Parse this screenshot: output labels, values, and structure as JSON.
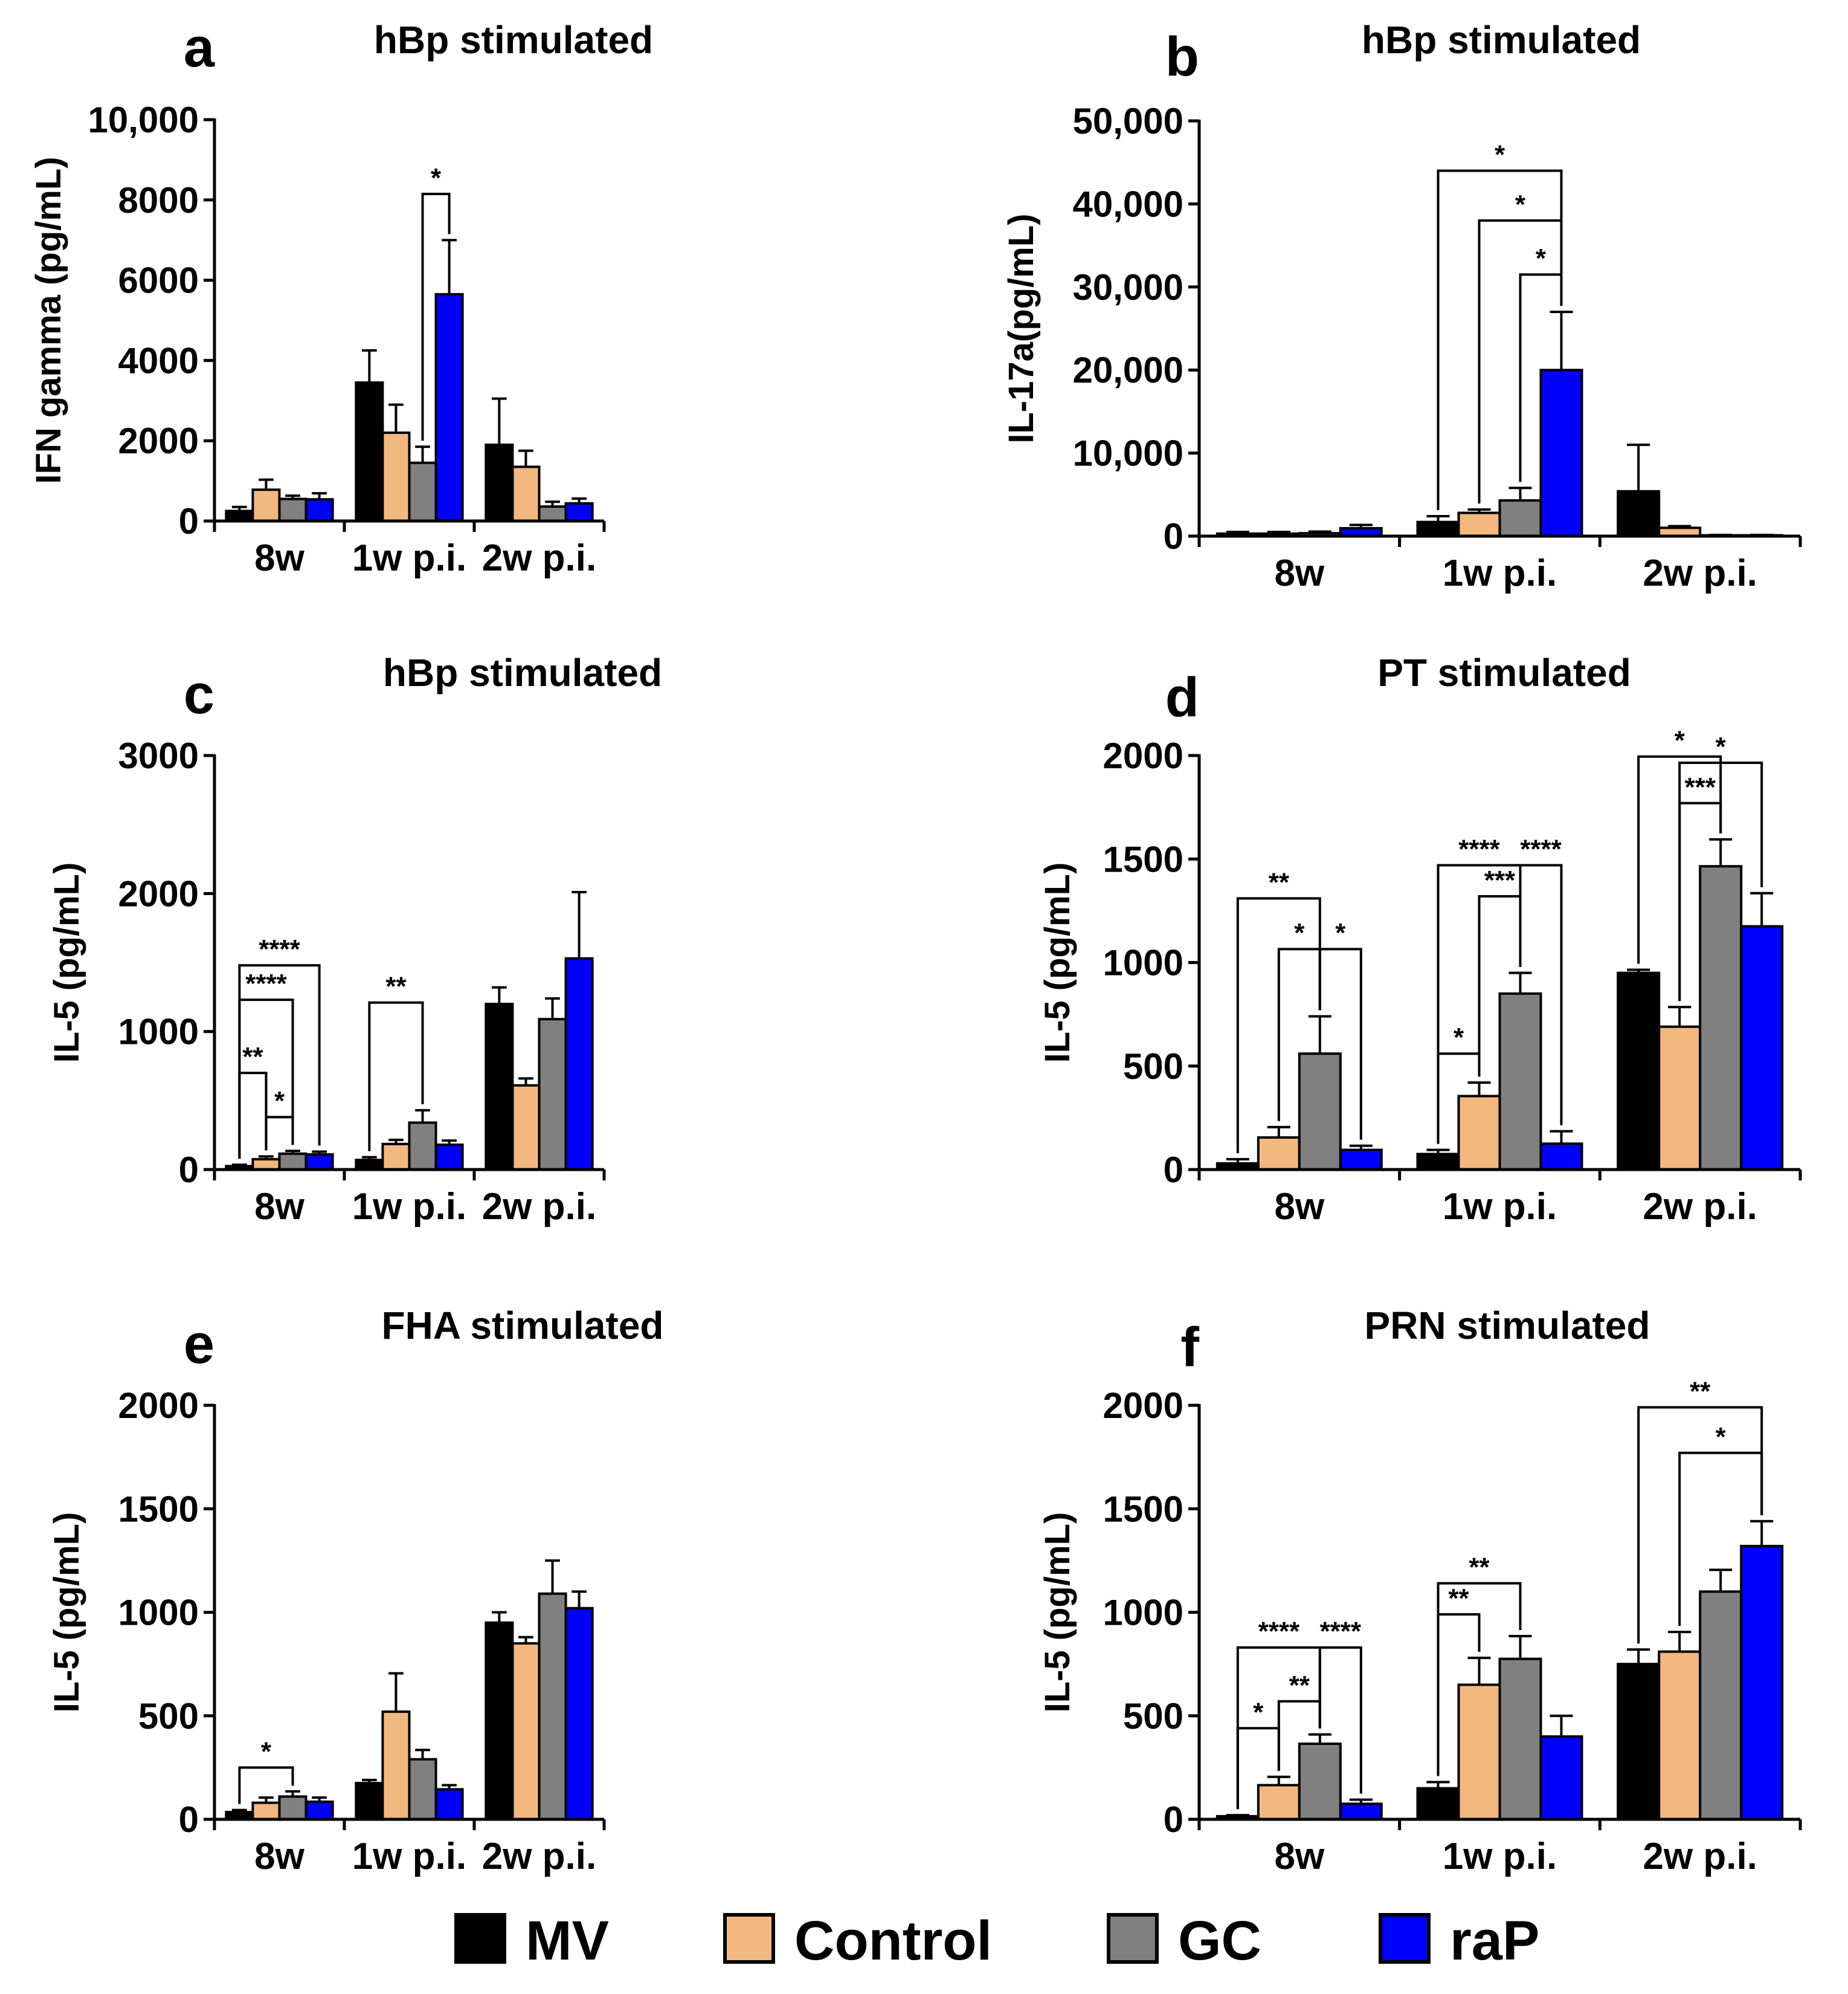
{
  "colors": {
    "MV": "#000000",
    "Control": "#F2B880",
    "GC": "#808080",
    "raP": "#0000FF"
  },
  "legend": [
    {
      "name": "MV",
      "color": "#000000"
    },
    {
      "name": "Control",
      "color": "#F2B880"
    },
    {
      "name": "GC",
      "color": "#808080"
    },
    {
      "name": "raP",
      "color": "#0000FF"
    }
  ],
  "chart_data": [
    {
      "panel": "a",
      "type": "bar",
      "title": "hBp stimulated",
      "xlabel": "",
      "ylabel": "IFN gamma (pg/mL)",
      "categories": [
        "8w",
        "1w p.i.",
        "2w p.i."
      ],
      "ylim": [
        0,
        10000
      ],
      "yticks": [
        0,
        2000,
        4000,
        6000,
        8000,
        10000
      ],
      "ytick_labels": [
        "0",
        "2000",
        "4000",
        "6000",
        "8000",
        "10,000"
      ],
      "series": [
        {
          "name": "MV",
          "values": [
            250,
            3450,
            1900
          ],
          "errors": [
            100,
            800,
            1150
          ]
        },
        {
          "name": "Control",
          "values": [
            780,
            2200,
            1350
          ],
          "errors": [
            250,
            700,
            400
          ]
        },
        {
          "name": "GC",
          "values": [
            550,
            1450,
            360
          ],
          "errors": [
            80,
            400,
            120
          ]
        },
        {
          "name": "raP",
          "values": [
            540,
            5650,
            440
          ],
          "errors": [
            150,
            1350,
            120
          ]
        }
      ],
      "significance": [
        {
          "label": "*",
          "group": 1,
          "from": 2,
          "to": 3,
          "level": 8150
        }
      ]
    },
    {
      "panel": "b",
      "type": "bar",
      "title": "hBp stimulated",
      "xlabel": "",
      "ylabel": "IL-17a(pg/mL)",
      "categories": [
        "8w",
        "1w p.i.",
        "2w p.i."
      ],
      "ylim": [
        0,
        50000
      ],
      "yticks": [
        0,
        10000,
        20000,
        30000,
        40000,
        50000
      ],
      "ytick_labels": [
        "0",
        "10,000",
        "20,000",
        "30,000",
        "40,000",
        "50,000"
      ],
      "series": [
        {
          "name": "MV",
          "values": [
            300,
            1700,
            5400
          ],
          "errors": [
            200,
            700,
            5600
          ]
        },
        {
          "name": "Control",
          "values": [
            300,
            2800,
            1000
          ],
          "errors": [
            200,
            400,
            200
          ]
        },
        {
          "name": "GC",
          "values": [
            350,
            4300,
            100
          ],
          "errors": [
            200,
            1500,
            50
          ]
        },
        {
          "name": "raP",
          "values": [
            950,
            20000,
            100
          ],
          "errors": [
            400,
            7000,
            50
          ]
        }
      ],
      "significance": [
        {
          "label": "*",
          "group": 1,
          "from": 0,
          "to": 3,
          "level": 44000
        },
        {
          "label": "*",
          "group": 1,
          "from": 1,
          "to": 3,
          "level": 38000
        },
        {
          "label": "*",
          "group": 1,
          "from": 2,
          "to": 3,
          "level": 31500
        }
      ]
    },
    {
      "panel": "c",
      "type": "bar",
      "title": "hBp stimulated",
      "xlabel": "",
      "ylabel": "IL-5 (pg/mL)",
      "categories": [
        "8w",
        "1w p.i.",
        "2w p.i."
      ],
      "ylim": [
        0,
        3000
      ],
      "yticks": [
        0,
        1000,
        2000,
        3000
      ],
      "ytick_labels": [
        "0",
        "1000",
        "2000",
        "3000"
      ],
      "series": [
        {
          "name": "MV",
          "values": [
            25,
            70,
            1200
          ],
          "errors": [
            10,
            20,
            120
          ]
        },
        {
          "name": "Control",
          "values": [
            75,
            185,
            610
          ],
          "errors": [
            20,
            30,
            50
          ]
        },
        {
          "name": "GC",
          "values": [
            115,
            340,
            1090
          ],
          "errors": [
            20,
            90,
            150
          ]
        },
        {
          "name": "raP",
          "values": [
            110,
            180,
            1530
          ],
          "errors": [
            20,
            30,
            480
          ]
        }
      ],
      "significance": [
        {
          "label": "****",
          "group": 0,
          "from": 0,
          "to": 3,
          "level": 1480
        },
        {
          "label": "****",
          "group": 0,
          "from": 0,
          "to": 2,
          "level": 1230
        },
        {
          "label": "**",
          "group": 0,
          "from": 0,
          "to": 1,
          "level": 700
        },
        {
          "label": "*",
          "group": 0,
          "from": 1,
          "to": 2,
          "level": 380
        },
        {
          "label": "**",
          "group": 1,
          "from": 0,
          "to": 2,
          "level": 1210
        }
      ]
    },
    {
      "panel": "d",
      "type": "bar",
      "title": "PT stimulated",
      "xlabel": "",
      "ylabel": "IL-5 (pg/mL)",
      "categories": [
        "8w",
        "1w p.i.",
        "2w p.i."
      ],
      "ylim": [
        0,
        2000
      ],
      "yticks": [
        0,
        500,
        1000,
        1500,
        2000
      ],
      "ytick_labels": [
        "0",
        "500",
        "1000",
        "1500",
        "2000"
      ],
      "series": [
        {
          "name": "MV",
          "values": [
            30,
            75,
            950
          ],
          "errors": [
            20,
            20,
            15
          ]
        },
        {
          "name": "Control",
          "values": [
            155,
            355,
            690
          ],
          "errors": [
            50,
            65,
            95
          ]
        },
        {
          "name": "GC",
          "values": [
            560,
            850,
            1465
          ],
          "errors": [
            180,
            100,
            130
          ]
        },
        {
          "name": "raP",
          "values": [
            95,
            125,
            1175
          ],
          "errors": [
            20,
            60,
            160
          ]
        }
      ],
      "significance": [
        {
          "label": "**",
          "group": 0,
          "from": 0,
          "to": 2,
          "level": 1310
        },
        {
          "label": "*",
          "group": 0,
          "from": 1,
          "to": 2,
          "level": 1065
        },
        {
          "label": "*",
          "group": 0,
          "from": 2,
          "to": 3,
          "level": 1065
        },
        {
          "label": "****",
          "group": 1,
          "from": 0,
          "to": 2,
          "level": 1470
        },
        {
          "label": "****",
          "group": 1,
          "from": 2,
          "to": 3,
          "level": 1470
        },
        {
          "label": "***",
          "group": 1,
          "from": 1,
          "to": 2,
          "level": 1320
        },
        {
          "label": "*",
          "group": 1,
          "from": 0,
          "to": 1,
          "level": 560
        },
        {
          "label": "*",
          "group": 2,
          "from": 0,
          "to": 2,
          "level": 1995
        },
        {
          "label": "*",
          "group": 2,
          "from": 1,
          "to": 3,
          "level": 1965
        },
        {
          "label": "***",
          "group": 2,
          "from": 1,
          "to": 2,
          "level": 1770
        }
      ]
    },
    {
      "panel": "e",
      "type": "bar",
      "title": "FHA stimulated",
      "xlabel": "",
      "ylabel": "IL-5 (pg/mL)",
      "categories": [
        "8w",
        "1w p.i.",
        "2w p.i."
      ],
      "ylim": [
        0,
        2000
      ],
      "yticks": [
        0,
        500,
        1000,
        1500,
        2000
      ],
      "ytick_labels": [
        "0",
        "500",
        "1000",
        "1500",
        "2000"
      ],
      "series": [
        {
          "name": "MV",
          "values": [
            35,
            175,
            950
          ],
          "errors": [
            10,
            15,
            50
          ]
        },
        {
          "name": "Control",
          "values": [
            80,
            520,
            850
          ],
          "errors": [
            25,
            185,
            30
          ]
        },
        {
          "name": "GC",
          "values": [
            110,
            290,
            1090
          ],
          "errors": [
            25,
            45,
            160
          ]
        },
        {
          "name": "raP",
          "values": [
            85,
            145,
            1020
          ],
          "errors": [
            20,
            20,
            80
          ]
        }
      ],
      "significance": [
        {
          "label": "*",
          "group": 0,
          "from": 0,
          "to": 2,
          "level": 250
        }
      ]
    },
    {
      "panel": "f",
      "type": "bar",
      "title": "PRN stimulated",
      "xlabel": "",
      "ylabel": "IL-5 (pg/mL)",
      "categories": [
        "8w",
        "1w p.i.",
        "2w p.i."
      ],
      "ylim": [
        0,
        2000
      ],
      "yticks": [
        0,
        500,
        1000,
        1500,
        2000
      ],
      "ytick_labels": [
        "0",
        "500",
        "1000",
        "1500",
        "2000"
      ],
      "series": [
        {
          "name": "MV",
          "values": [
            15,
            150,
            750
          ],
          "errors": [
            5,
            30,
            70
          ]
        },
        {
          "name": "Control",
          "values": [
            165,
            650,
            810
          ],
          "errors": [
            40,
            130,
            95
          ]
        },
        {
          "name": "GC",
          "values": [
            365,
            775,
            1100
          ],
          "errors": [
            45,
            110,
            105
          ]
        },
        {
          "name": "raP",
          "values": [
            75,
            400,
            1320
          ],
          "errors": [
            20,
            100,
            120
          ]
        }
      ],
      "significance": [
        {
          "label": "****",
          "group": 0,
          "from": 0,
          "to": 2,
          "level": 830
        },
        {
          "label": "****",
          "group": 0,
          "from": 2,
          "to": 3,
          "level": 830
        },
        {
          "label": "**",
          "group": 0,
          "from": 1,
          "to": 2,
          "level": 570
        },
        {
          "label": "*",
          "group": 0,
          "from": 0,
          "to": 1,
          "level": 440
        },
        {
          "label": "**",
          "group": 1,
          "from": 0,
          "to": 2,
          "level": 1140
        },
        {
          "label": "**",
          "group": 1,
          "from": 0,
          "to": 1,
          "level": 990
        },
        {
          "label": "**",
          "group": 2,
          "from": 0,
          "to": 3,
          "level": 1990
        },
        {
          "label": "*",
          "group": 2,
          "from": 1,
          "to": 3,
          "level": 1770
        }
      ]
    }
  ]
}
